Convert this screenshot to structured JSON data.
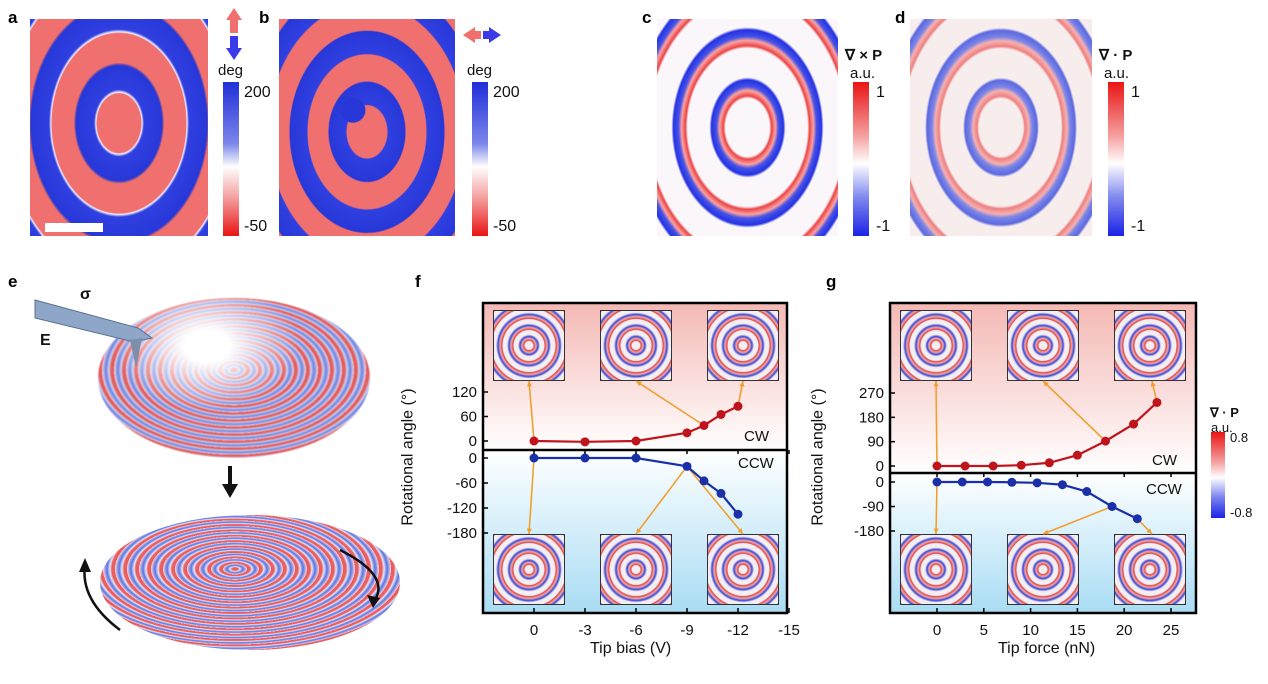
{
  "panels": {
    "a": {
      "label": "a",
      "colorbar_unit": "deg",
      "cbar_max": "200",
      "cbar_min": "-50"
    },
    "b": {
      "label": "b",
      "colorbar_unit": "deg",
      "cbar_max": "200",
      "cbar_min": "-50"
    },
    "c": {
      "label": "c",
      "colorbar_title": "∇ × P",
      "colorbar_unit": "a.u.",
      "cbar_max": "1",
      "cbar_min": "-1"
    },
    "d": {
      "label": "d",
      "colorbar_title": "∇ · P",
      "colorbar_unit": "a.u.",
      "cbar_max": "1",
      "cbar_min": "-1"
    },
    "e": {
      "label": "e",
      "sigma": "σ",
      "field": "E"
    },
    "f": {
      "label": "f"
    },
    "g": {
      "label": "g",
      "colorbar_title": "∇ · P",
      "colorbar_unit": "a.u.",
      "cbar_max": "0.8",
      "cbar_min": "-0.8"
    }
  },
  "colors": {
    "cw": "#c0141c",
    "ccw": "#1a2fa8",
    "arrow": "#f0a030"
  },
  "chart_data": [
    {
      "type": "line",
      "id": "f",
      "xlabel": "Tip bias (V)",
      "ylabel": "Rotational angle (°)",
      "xticks": [
        "0",
        "-3",
        "-6",
        "-9",
        "-12",
        "-15"
      ],
      "xtick_values": [
        0,
        -3,
        -6,
        -9,
        -12,
        -15
      ],
      "xlim": [
        3,
        -16
      ],
      "cw_yticks": [
        "0",
        "60",
        "120"
      ],
      "cw_ytick_values": [
        0,
        60,
        120
      ],
      "ccw_yticks": [
        "0",
        "-60",
        "-120",
        "-180"
      ],
      "ccw_ytick_values": [
        0,
        -60,
        -120,
        -180
      ],
      "series": [
        {
          "name": "CW",
          "x": [
            0,
            -3,
            -6,
            -9,
            -10,
            -11,
            -12
          ],
          "y": [
            0,
            -2,
            0,
            20,
            38,
            65,
            85
          ]
        },
        {
          "name": "CCW",
          "x": [
            0,
            -3,
            -6,
            -9,
            -10,
            -11,
            -12
          ],
          "y": [
            0,
            0,
            0,
            -20,
            -55,
            -85,
            -135
          ]
        }
      ]
    },
    {
      "type": "line",
      "id": "g",
      "xlabel": "Tip force (nN)",
      "ylabel": "Rotational angle (°)",
      "xticks": [
        "0",
        "5",
        "10",
        "15",
        "20",
        "25"
      ],
      "xtick_values": [
        0,
        5,
        10,
        15,
        20,
        25
      ],
      "xlim": [
        -5,
        27.5
      ],
      "cw_yticks": [
        "0",
        "90",
        "180",
        "270"
      ],
      "cw_ytick_values": [
        0,
        90,
        180,
        270
      ],
      "ccw_yticks": [
        "0",
        "-90",
        "-180"
      ],
      "ccw_ytick_values": [
        0,
        -90,
        -180
      ],
      "series": [
        {
          "name": "CW",
          "x": [
            0,
            3,
            6,
            9,
            12,
            15,
            18,
            21,
            23.5
          ],
          "y": [
            0,
            0,
            0,
            3,
            12,
            40,
            92,
            155,
            235
          ]
        },
        {
          "name": "CCW",
          "x": [
            0,
            2.7,
            5.4,
            8,
            10.7,
            13.4,
            16,
            18.7,
            21.4
          ],
          "y": [
            0,
            0,
            0,
            -1,
            -3,
            -10,
            -35,
            -90,
            -135
          ]
        }
      ]
    }
  ]
}
